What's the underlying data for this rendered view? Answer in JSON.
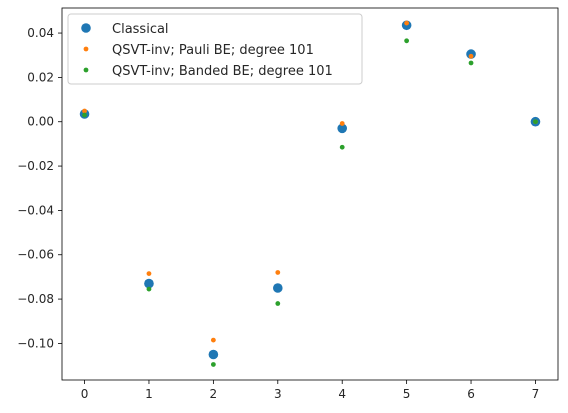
{
  "chart_data": {
    "type": "scatter",
    "x": [
      0,
      1,
      2,
      3,
      4,
      5,
      6,
      7
    ],
    "xlim": [
      -0.35,
      7.35
    ],
    "ylim": [
      -0.1165,
      0.0513
    ],
    "x_ticks": [
      0,
      1,
      2,
      3,
      4,
      5,
      6,
      7
    ],
    "x_tick_labels": [
      "0",
      "1",
      "2",
      "3",
      "4",
      "5",
      "6",
      "7"
    ],
    "y_ticks": [
      0.04,
      0.02,
      0.0,
      -0.02,
      -0.04,
      -0.06,
      -0.08,
      -0.1
    ],
    "y_tick_labels": [
      "0.04",
      "0.02",
      "0.00",
      "−0.02",
      "−0.04",
      "−0.06",
      "−0.08",
      "−0.10"
    ],
    "grid": false,
    "legend_position": "upper-left",
    "series": [
      {
        "name": "Classical",
        "color": "#1f77b4",
        "marker": "large-dot",
        "values": [
          0.0035,
          -0.073,
          -0.105,
          -0.075,
          -0.003,
          0.0435,
          0.0305,
          0.0
        ]
      },
      {
        "name": "QSVT-inv; Pauli BE; degree 101",
        "color": "#ff7f0e",
        "marker": "small-dot",
        "values": [
          0.0048,
          -0.0685,
          -0.0985,
          -0.068,
          -0.0008,
          0.0445,
          0.0295,
          0.0
        ]
      },
      {
        "name": "QSVT-inv; Banded BE; degree 101",
        "color": "#2ca02c",
        "marker": "small-dot",
        "values": [
          0.003,
          -0.0755,
          -0.1095,
          -0.082,
          -0.0115,
          0.0365,
          0.0265,
          0.0
        ]
      }
    ]
  }
}
